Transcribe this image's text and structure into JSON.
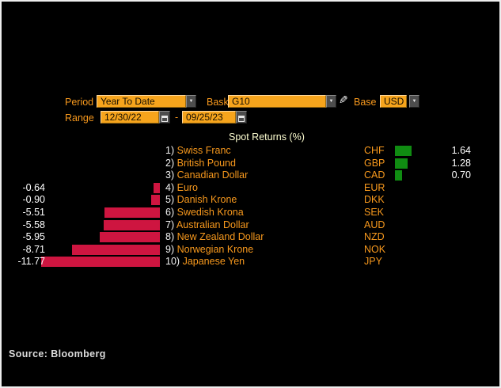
{
  "controls": {
    "period": {
      "label": "Period",
      "value": "Year To Date"
    },
    "basket": {
      "label": "Basket",
      "value": "G10"
    },
    "base": {
      "label": "Base",
      "value": "USD"
    },
    "range": {
      "label": "Range",
      "start": "12/30/22",
      "separator": "-",
      "end": "09/25/23"
    }
  },
  "icons": {
    "dropdown_arrow": "▼",
    "pencil": "✎",
    "calendar": "calendar-grid"
  },
  "chart_data": {
    "type": "bar",
    "orientation": "horizontal",
    "title": "Spot Returns (%)",
    "unit": "%",
    "xlim": [
      -11.77,
      1.64
    ],
    "legend": "none",
    "grid": false,
    "categories": [
      "Swiss Franc",
      "British Pound",
      "Canadian Dollar",
      "Euro",
      "Danish Krone",
      "Swedish Krona",
      "Australian Dollar",
      "New Zealand Dollar",
      "Norwegian Krone",
      "Japanese Yen"
    ],
    "values": [
      1.64,
      1.28,
      0.7,
      -0.64,
      -0.9,
      -5.51,
      -5.58,
      -5.95,
      -8.71,
      -11.77
    ],
    "rows": [
      {
        "rank": "1)",
        "name": "Swiss Franc",
        "code": "CHF",
        "value": 1.64,
        "value_label": "1.64"
      },
      {
        "rank": "2)",
        "name": "British Pound",
        "code": "GBP",
        "value": 1.28,
        "value_label": "1.28"
      },
      {
        "rank": "3)",
        "name": "Canadian Dollar",
        "code": "CAD",
        "value": 0.7,
        "value_label": "0.70"
      },
      {
        "rank": "4)",
        "name": "Euro",
        "code": "EUR",
        "value": -0.64,
        "value_label": "-0.64"
      },
      {
        "rank": "5)",
        "name": "Danish Krone",
        "code": "DKK",
        "value": -0.9,
        "value_label": "-0.90"
      },
      {
        "rank": "6)",
        "name": "Swedish Krona",
        "code": "SEK",
        "value": -5.51,
        "value_label": "-5.51"
      },
      {
        "rank": "7)",
        "name": "Australian Dollar",
        "code": "AUD",
        "value": -5.58,
        "value_label": "-5.58"
      },
      {
        "rank": "8)",
        "name": "New Zealand Dollar",
        "code": "NZD",
        "value": -5.95,
        "value_label": "-5.95"
      },
      {
        "rank": "9)",
        "name": "Norwegian Krone",
        "code": "NOK",
        "value": -8.71,
        "value_label": "-8.71"
      },
      {
        "rank": "10)",
        "name": "Japanese Yen",
        "code": "JPY",
        "value": -11.77,
        "value_label": "-11.77"
      }
    ]
  },
  "colors": {
    "background": "#000000",
    "frame_border": "#ededed",
    "amber_label": "#f8991d",
    "amber_field": "#f6a41c",
    "positive_bar": "#108c12",
    "negative_bar": "#ce1540",
    "title_text": "#ffffd2",
    "value_text": "#ffffff",
    "source_text": "#dcdcdc"
  },
  "footer": {
    "source": "Source: Bloomberg"
  }
}
